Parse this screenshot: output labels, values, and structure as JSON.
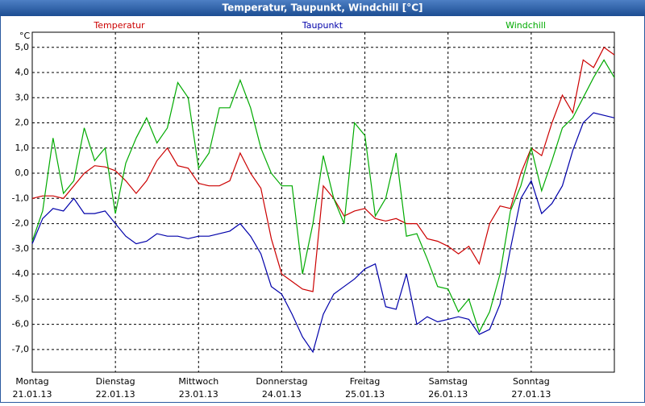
{
  "chart_data": {
    "type": "line",
    "title": "Temperatur, Taupunkt, Windchill [°C]",
    "y_unit": "°C",
    "x": [
      0,
      0.125,
      0.25,
      0.375,
      0.5,
      0.625,
      0.75,
      0.875,
      1,
      1.125,
      1.25,
      1.375,
      1.5,
      1.625,
      1.75,
      1.875,
      2,
      2.125,
      2.25,
      2.375,
      2.5,
      2.625,
      2.75,
      2.875,
      3,
      3.125,
      3.25,
      3.375,
      3.5,
      3.625,
      3.75,
      3.875,
      4,
      4.125,
      4.25,
      4.375,
      4.5,
      4.625,
      4.75,
      4.875,
      5,
      5.125,
      5.25,
      5.375,
      5.5,
      5.625,
      5.75,
      5.875,
      6,
      6.125,
      6.25,
      6.375,
      6.5,
      6.625,
      6.75,
      6.875,
      7
    ],
    "series": [
      {
        "name": "Temperatur",
        "color": "#cc0000",
        "values": [
          -1.0,
          -0.9,
          -0.9,
          -1.0,
          -0.5,
          0.0,
          0.3,
          0.25,
          0.1,
          -0.3,
          -0.8,
          -0.3,
          0.5,
          1.0,
          0.3,
          0.2,
          -0.4,
          -0.5,
          -0.5,
          -0.3,
          0.8,
          0.0,
          -0.6,
          -2.6,
          -4.0,
          -4.3,
          -4.6,
          -4.7,
          -0.5,
          -1.0,
          -1.7,
          -1.5,
          -1.4,
          -1.8,
          -1.9,
          -1.8,
          -2.0,
          -2.0,
          -2.6,
          -2.7,
          -2.9,
          -3.2,
          -2.9,
          -3.6,
          -2.0,
          -1.3,
          -1.4,
          0.0,
          1.0,
          0.7,
          2.0,
          3.1,
          2.4,
          4.5,
          4.2,
          5.0,
          4.7
        ]
      },
      {
        "name": "Taupunkt",
        "color": "#0000aa",
        "values": [
          -2.8,
          -1.8,
          -1.4,
          -1.5,
          -1.0,
          -1.6,
          -1.6,
          -1.5,
          -2.0,
          -2.5,
          -2.8,
          -2.7,
          -2.4,
          -2.5,
          -2.5,
          -2.6,
          -2.5,
          -2.5,
          -2.4,
          -2.3,
          -2.0,
          -2.5,
          -3.2,
          -4.5,
          -4.8,
          -5.6,
          -6.5,
          -7.1,
          -5.6,
          -4.8,
          -4.5,
          -4.2,
          -3.8,
          -3.6,
          -5.3,
          -5.4,
          -4.0,
          -6.0,
          -5.7,
          -5.9,
          -5.8,
          -5.7,
          -5.8,
          -6.4,
          -6.2,
          -5.2,
          -3.0,
          -1.0,
          -0.3,
          -1.6,
          -1.2,
          -0.5,
          0.9,
          2.0,
          2.4,
          2.3,
          2.2
        ]
      },
      {
        "name": "Windchill",
        "color": "#00aa00",
        "values": [
          -2.7,
          -1.5,
          1.4,
          -0.8,
          -0.3,
          1.8,
          0.5,
          1.0,
          -1.6,
          0.4,
          1.4,
          2.2,
          1.2,
          1.8,
          3.6,
          3.0,
          0.2,
          0.8,
          2.6,
          2.6,
          3.7,
          2.6,
          1.0,
          0.0,
          -0.5,
          -0.5,
          -4.0,
          -2.0,
          0.7,
          -1.0,
          -2.0,
          2.0,
          1.5,
          -1.7,
          -1.0,
          0.8,
          -2.5,
          -2.4,
          -3.4,
          -4.5,
          -4.6,
          -5.5,
          -5.0,
          -6.3,
          -5.5,
          -4.0,
          -1.5,
          -0.5,
          1.0,
          -0.7,
          0.5,
          1.8,
          2.2,
          3.0,
          3.8,
          4.5,
          3.8
        ]
      }
    ],
    "xlim": [
      0,
      7
    ],
    "xticks": [
      {
        "value": 0,
        "label": "Montag"
      },
      {
        "value": 1,
        "label": "Dienstag"
      },
      {
        "value": 2,
        "label": "Mittwoch"
      },
      {
        "value": 3,
        "label": "Donnerstag"
      },
      {
        "value": 4,
        "label": "Freitag"
      },
      {
        "value": 5,
        "label": "Samstag"
      },
      {
        "value": 6,
        "label": "Sonntag"
      }
    ],
    "xtick_dates": [
      "21.01.13",
      "22.01.13",
      "23.01.13",
      "24.01.13",
      "25.01.13",
      "26.01.13",
      "27.01.13"
    ],
    "ylim": [
      -7.9,
      5.6
    ],
    "yticks": [
      {
        "value": 5,
        "label": "5,0"
      },
      {
        "value": 4,
        "label": "4,0"
      },
      {
        "value": 3,
        "label": "3,0"
      },
      {
        "value": 2,
        "label": "2,0"
      },
      {
        "value": 1,
        "label": "1,0"
      },
      {
        "value": 0,
        "label": "0,0"
      },
      {
        "value": -1,
        "label": "-1,0"
      },
      {
        "value": -2,
        "label": "-2,0"
      },
      {
        "value": -3,
        "label": "-3,0"
      },
      {
        "value": -4,
        "label": "-4,0"
      },
      {
        "value": -5,
        "label": "-5,0"
      },
      {
        "value": -6,
        "label": "-6,0"
      },
      {
        "value": -7,
        "label": "-7,0"
      }
    ],
    "grid": true
  }
}
